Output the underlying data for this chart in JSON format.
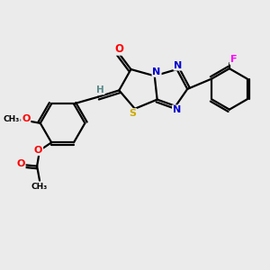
{
  "bg_color": "#ebebeb",
  "bond_color": "#000000",
  "atom_colors": {
    "O": "#ff0000",
    "N": "#0000cd",
    "S": "#ccaa00",
    "F": "#ff00ff",
    "C": "#000000",
    "H": "#5a8a8a"
  }
}
